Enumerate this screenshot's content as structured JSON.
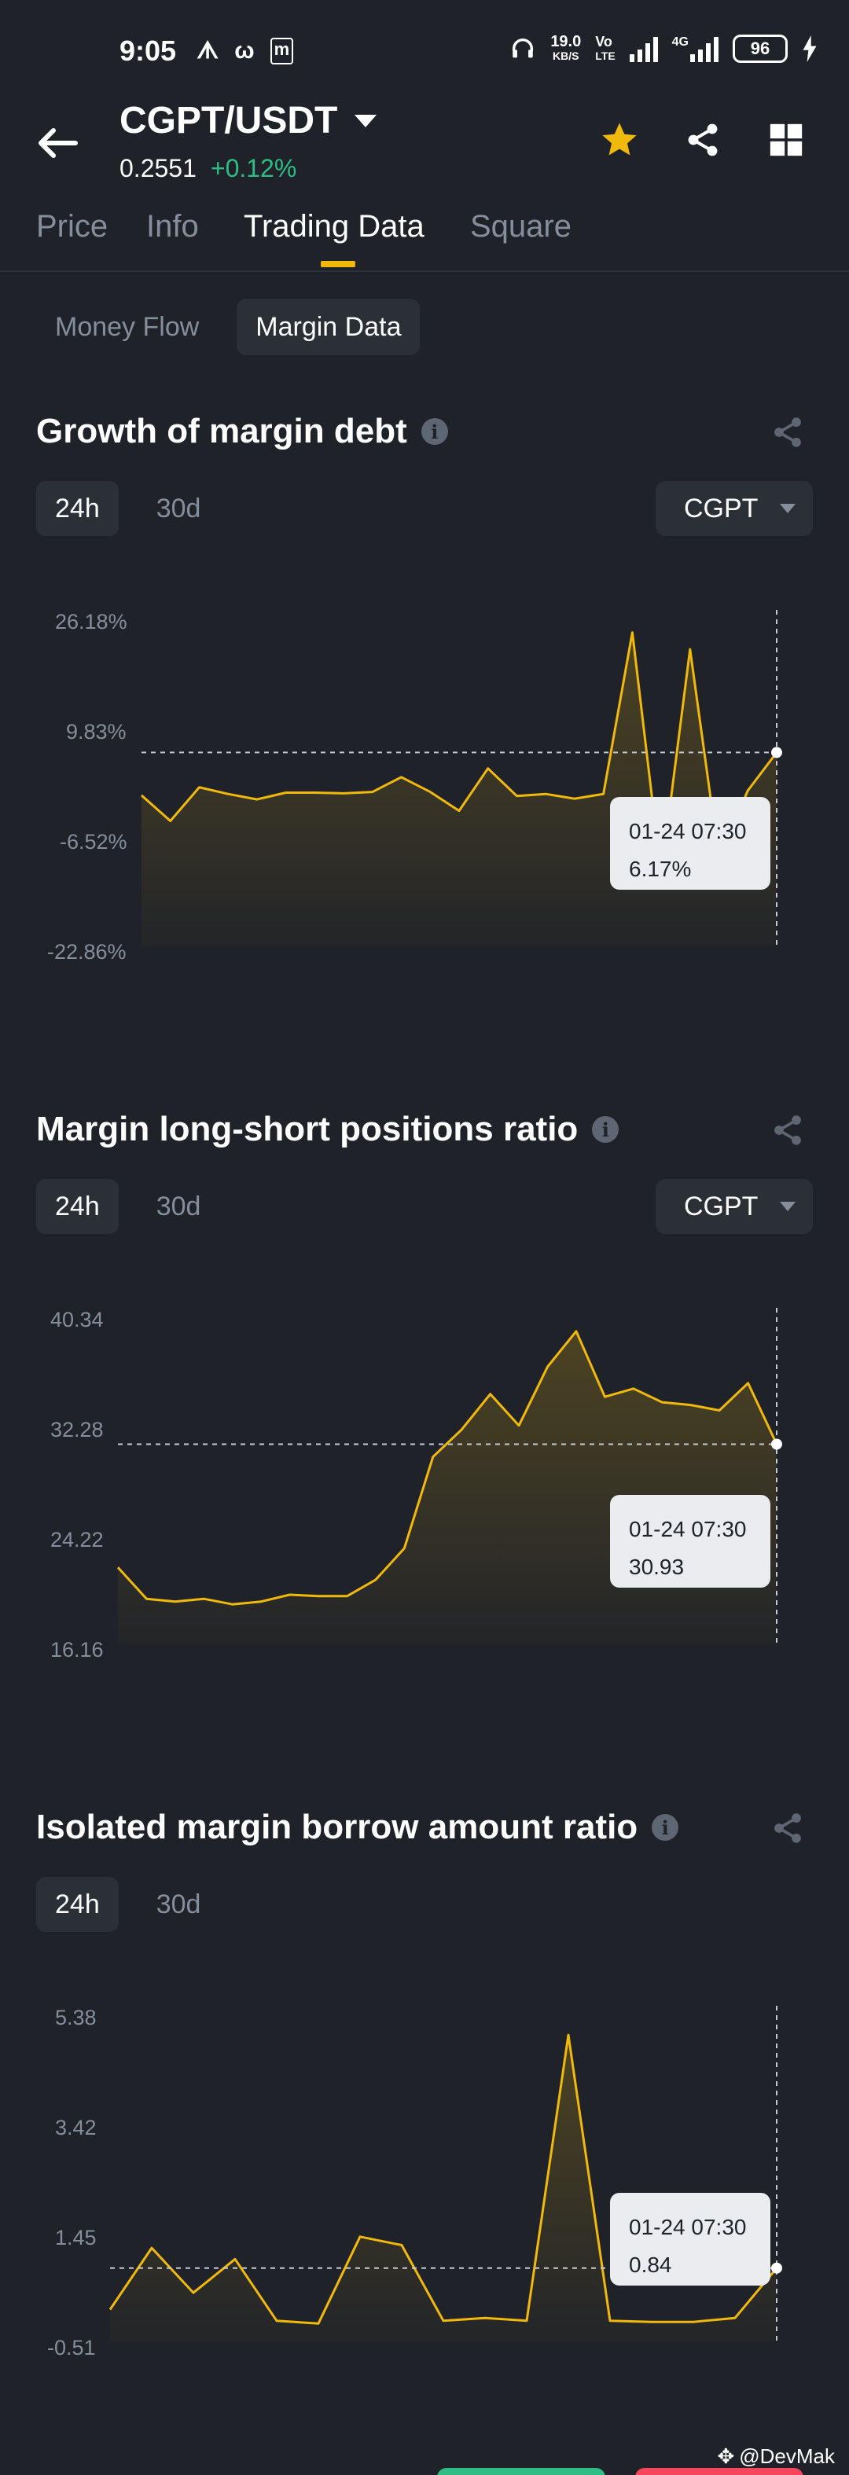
{
  "status_bar": {
    "time": "9:05",
    "net_speed_value": "19.0",
    "net_speed_unit": "KB/S",
    "volte_top": "Vo",
    "volte_bottom": "LTE",
    "network": "4G",
    "battery": "96"
  },
  "header": {
    "pair": "CGPT/USDT",
    "last_price": "0.2551",
    "change": "+0.12%"
  },
  "tabs": [
    "Price",
    "Info",
    "Trading Data",
    "Square"
  ],
  "active_tab": "Trading Data",
  "subtabs": [
    "Money Flow",
    "Margin Data"
  ],
  "active_subtab": "Margin Data",
  "sections": [
    {
      "title": "Growth of margin debt",
      "ranges": [
        "24h",
        "30d"
      ],
      "coin": "CGPT",
      "tooltip_time": "01-24 07:30",
      "tooltip_value": "6.17%"
    },
    {
      "title": "Margin long-short positions ratio",
      "ranges": [
        "24h",
        "30d"
      ],
      "coin": "CGPT",
      "tooltip_time": "01-24 07:30",
      "tooltip_value": "30.93"
    },
    {
      "title": "Isolated margin borrow amount ratio",
      "ranges": [
        "24h",
        "30d"
      ],
      "coin": "",
      "tooltip_time": "01-24 07:30",
      "tooltip_value": "0.84"
    }
  ],
  "chart_data": [
    {
      "type": "area",
      "y_ticks": [
        "26.18%",
        "9.83%",
        "-6.52%",
        "-22.86%"
      ],
      "ylim": [
        -22.86,
        26.18
      ],
      "values": [
        -0.2,
        -4.0,
        1.0,
        0.0,
        -0.8,
        0.2,
        0.2,
        0.1,
        0.3,
        2.5,
        0.3,
        -2.5,
        3.8,
        -0.3,
        0.0,
        -0.7,
        0.0,
        24.0,
        -12.0,
        21.5,
        -9.5,
        0.5,
        6.17
      ],
      "color": "#f0b90b"
    },
    {
      "type": "area",
      "y_ticks": [
        "40.34",
        "32.28",
        "24.22",
        "16.16"
      ],
      "ylim": [
        16.16,
        40.34
      ],
      "values": [
        21.9,
        19.6,
        19.4,
        19.6,
        19.2,
        19.4,
        19.9,
        19.8,
        19.8,
        21.0,
        23.3,
        30.0,
        32.0,
        34.6,
        32.3,
        36.6,
        39.2,
        34.4,
        35.0,
        34.0,
        33.8,
        33.4,
        35.4,
        30.93
      ],
      "color": "#f0b90b"
    },
    {
      "type": "area",
      "y_ticks": [
        "5.38",
        "3.42",
        "1.45",
        "-0.51"
      ],
      "ylim": [
        -0.51,
        5.38
      ],
      "values": [
        0.1,
        1.2,
        0.4,
        1.0,
        -0.1,
        -0.15,
        1.4,
        1.25,
        -0.1,
        -0.05,
        -0.1,
        5.0,
        -0.1,
        -0.12,
        -0.12,
        -0.05,
        0.84
      ],
      "color": "#f0b90b"
    }
  ],
  "watermark": "@DevMak",
  "colors": {
    "background": "#1f2229",
    "accent": "#f0b90b",
    "positive": "#2ebd85",
    "muted": "#848e9c",
    "chip": "#2b2f36"
  }
}
